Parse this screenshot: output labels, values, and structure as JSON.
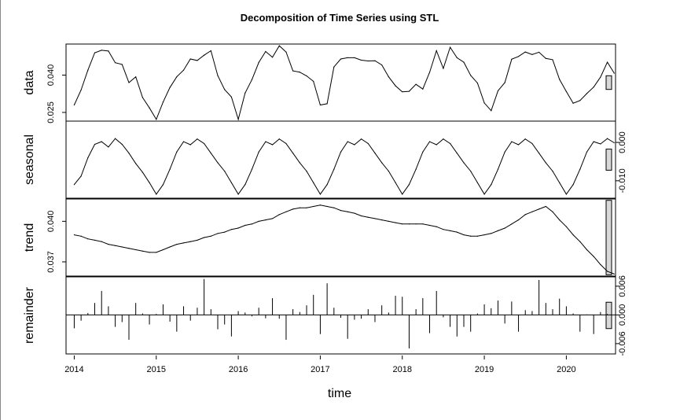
{
  "chart_data": {
    "type": "line",
    "title": "Decomposition of Time Series using STL",
    "xlabel": "time",
    "xlim": [
      2013.9,
      2020.6
    ],
    "x_ticks": [
      "2014",
      "2015",
      "2016",
      "2017",
      "2018",
      "2019",
      "2020"
    ],
    "x_start": 2014.0,
    "x_frequency": 12,
    "panels": [
      {
        "name": "data",
        "ylabel": "data",
        "axis_side": "left",
        "ylim": [
          0.0215,
          0.0525
        ],
        "y_ticks": [
          "0.025",
          "0.040"
        ],
        "y_tick_values": [
          0.025,
          0.04
        ],
        "range_bar_height": 0.0055,
        "values": [
          0.028,
          0.034,
          0.042,
          0.049,
          0.05,
          0.0497,
          0.045,
          0.0443,
          0.037,
          0.0393,
          0.031,
          0.0268,
          0.0222,
          0.0292,
          0.035,
          0.0393,
          0.042,
          0.0465,
          0.0459,
          0.048,
          0.0498,
          0.0398,
          0.0342,
          0.0312,
          0.0222,
          0.0328,
          0.0382,
          0.0451,
          0.0495,
          0.0472,
          0.0518,
          0.0493,
          0.0417,
          0.0412,
          0.0397,
          0.0375,
          0.028,
          0.0285,
          0.0433,
          0.0465,
          0.047,
          0.047,
          0.046,
          0.0457,
          0.0458,
          0.0441,
          0.0393,
          0.0357,
          0.0333,
          0.0335,
          0.0363,
          0.0344,
          0.0411,
          0.0498,
          0.0427,
          0.0512,
          0.047,
          0.0452,
          0.0399,
          0.0368,
          0.0288,
          0.0257,
          0.0337,
          0.037,
          0.0464,
          0.0475,
          0.0493,
          0.0483,
          0.0492,
          0.0467,
          0.0462,
          0.0383,
          0.0334,
          0.0287,
          0.0298,
          0.0326,
          0.0352,
          0.0392,
          0.0452,
          0.0408
        ]
      },
      {
        "name": "seasonal",
        "ylabel": "seasonal",
        "axis_side": "right",
        "ylim": [
          -0.01455,
          0.00555
        ],
        "y_ticks": [
          "-0.010",
          "0.000"
        ],
        "y_tick_values": [
          -0.01,
          0.0
        ],
        "range_bar_height": 0.0055,
        "values": [
          -0.011,
          -0.0088,
          -0.004,
          -0.0005,
          0.0002,
          -0.0012,
          0.001,
          -0.0005,
          -0.0028,
          -0.0055,
          -0.0078,
          -0.0105,
          -0.0135,
          -0.011,
          -0.007,
          -0.0025,
          0.0002,
          -0.0006,
          0.0009,
          -0.0003,
          -0.0028,
          -0.0053,
          -0.0075,
          -0.0105,
          -0.0135,
          -0.011,
          -0.007,
          -0.0025,
          0.0002,
          -0.0006,
          0.0009,
          -0.0003,
          -0.0028,
          -0.0053,
          -0.0075,
          -0.0105,
          -0.0135,
          -0.011,
          -0.007,
          -0.0025,
          0.0002,
          -0.0006,
          0.0009,
          -0.0003,
          -0.0028,
          -0.0053,
          -0.0075,
          -0.0105,
          -0.0135,
          -0.011,
          -0.007,
          -0.0025,
          0.0002,
          -0.0006,
          0.0009,
          -0.0003,
          -0.0028,
          -0.0053,
          -0.0075,
          -0.0105,
          -0.0135,
          -0.011,
          -0.007,
          -0.0025,
          0.0002,
          -0.0006,
          0.0009,
          -0.0003,
          -0.0028,
          -0.0053,
          -0.0075,
          -0.0105,
          -0.0135,
          -0.011,
          -0.007,
          -0.0025,
          0.0002,
          -0.0004,
          0.001,
          -0.0001
        ]
      },
      {
        "name": "trend",
        "ylabel": "trend",
        "axis_side": "left",
        "ylim": [
          0.03595,
          0.04165
        ],
        "y_ticks": [
          "0.037",
          "0.040"
        ],
        "y_tick_values": [
          0.037,
          0.04
        ],
        "range_bar_height": 0.0055,
        "values": [
          0.039,
          0.0389,
          0.0387,
          0.0386,
          0.0385,
          0.0383,
          0.0382,
          0.0381,
          0.038,
          0.0379,
          0.0378,
          0.0377,
          0.0377,
          0.0379,
          0.0381,
          0.0383,
          0.0384,
          0.0385,
          0.0386,
          0.0388,
          0.0389,
          0.0391,
          0.0392,
          0.0394,
          0.0395,
          0.0397,
          0.0398,
          0.04,
          0.0401,
          0.0402,
          0.0405,
          0.0407,
          0.0409,
          0.041,
          0.041,
          0.0411,
          0.0412,
          0.0411,
          0.041,
          0.0408,
          0.0407,
          0.0406,
          0.0404,
          0.0403,
          0.0402,
          0.0401,
          0.04,
          0.0399,
          0.0398,
          0.0398,
          0.0398,
          0.0398,
          0.0397,
          0.0396,
          0.0394,
          0.0393,
          0.0392,
          0.039,
          0.0389,
          0.0389,
          0.039,
          0.0391,
          0.0393,
          0.0395,
          0.0398,
          0.0401,
          0.0405,
          0.0407,
          0.0409,
          0.0411,
          0.0407,
          0.0401,
          0.0396,
          0.039,
          0.0385,
          0.0379,
          0.0374,
          0.0368,
          0.0363,
          0.0361
        ]
      },
      {
        "name": "remainder",
        "ylabel": "remainder",
        "axis_side": "right",
        "ylim": [
          -0.00815,
          0.00795
        ],
        "y_ticks": [
          "-0.006",
          "0.000",
          "0.006"
        ],
        "y_tick_values": [
          -0.006,
          0.0,
          0.006
        ],
        "range_bar_height": 0.0055,
        "values": [
          -0.0028,
          -0.0012,
          0.0004,
          0.0025,
          0.005,
          0.0018,
          -0.0025,
          -0.0015,
          -0.0052,
          0.0025,
          0.0003,
          -0.002,
          0.0002,
          0.0022,
          -0.0014,
          -0.0035,
          0.0018,
          -0.0012,
          0.0015,
          0.0075,
          0.0012,
          -0.003,
          -0.002,
          -0.0045,
          0.0008,
          0.0005,
          -0.0003,
          0.0015,
          -0.0007,
          0.0035,
          -0.0008,
          -0.0052,
          0.0012,
          0.0006,
          0.002,
          0.0042,
          -0.004,
          0.0066,
          0.0015,
          -0.0006,
          -0.005,
          -0.001,
          -0.0008,
          0.0012,
          -0.0015,
          0.002,
          0.0005,
          0.004,
          0.0038,
          -0.007,
          0.0012,
          0.0035,
          -0.0038,
          0.005,
          -0.0005,
          -0.0025,
          -0.0045,
          -0.0025,
          -0.0035,
          0.0003,
          0.0022,
          0.0014,
          0.003,
          -0.0018,
          0.0028,
          -0.0035,
          0.001,
          0.0008,
          0.0073,
          0.0025,
          0.0012,
          0.0034,
          0.0018,
          0.0003,
          -0.0035,
          0.0001,
          -0.004,
          0.0006,
          0.0002,
          0.0
        ]
      }
    ]
  }
}
